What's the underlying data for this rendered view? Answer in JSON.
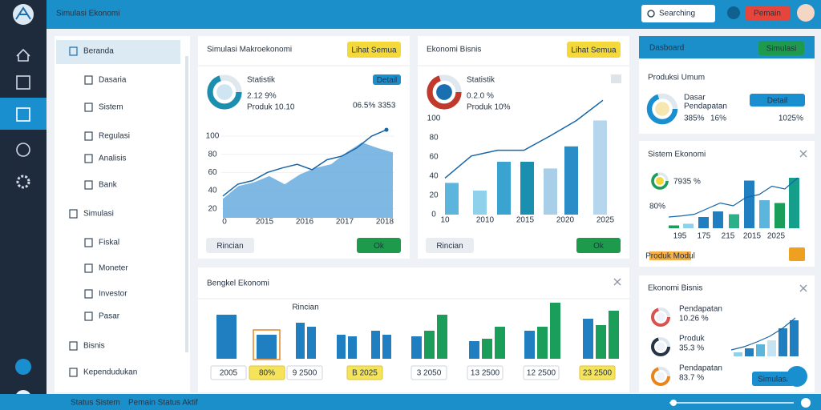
{
  "app": {
    "title": "Simulasi Ekonomi",
    "search": "Searching",
    "button": "Pemain"
  },
  "sidebar": [
    "Beranda",
    "Dasaria",
    "Sistem",
    "Regulasi",
    "Analisis",
    "Bank",
    "Simulasi",
    "Fiskal",
    "Moneter",
    "Investor",
    "Pasar",
    "Bisnis",
    "Kependudukan"
  ],
  "macro": {
    "title": "Simulasi Makroekonomi",
    "button": "Lihat Semua",
    "stat_label": "Statistik",
    "stat_value": "2.12 9%",
    "stat_sub": "Produk 10.10",
    "pill": "Detail",
    "stat_right": "06.5% 3353",
    "chart": {
      "ylim": [
        10,
        100
      ],
      "yticks": [
        20,
        40,
        60,
        80,
        100
      ],
      "xlabels": [
        "0",
        "2015",
        "2016",
        "2017",
        "2018"
      ],
      "area": [
        31,
        45,
        49,
        56,
        47,
        58,
        65,
        69,
        82,
        93,
        87,
        82
      ],
      "line": [
        34,
        47,
        51,
        60,
        65,
        69,
        63,
        74,
        78,
        87,
        100,
        107
      ]
    },
    "button_left": "Rincian",
    "button_right": "Ok"
  },
  "business": {
    "title": "Ekonomi Bisnis",
    "button": "Lihat Semua",
    "stat_label": "Statistik",
    "stat_value": "0.2.0 %",
    "stat_sub": "Produk 10%",
    "chart": {
      "ylim": [
        0,
        120
      ],
      "yticks": [
        0,
        20,
        40,
        60,
        80,
        100
      ],
      "xlabels": [
        "10",
        "2010",
        "2015",
        "2020",
        "2025"
      ],
      "bars": [
        33,
        25,
        55,
        55,
        48,
        71,
        98
      ],
      "line": [
        38,
        61,
        67,
        67,
        82,
        98,
        119
      ]
    },
    "button_left": "Rincian",
    "button_right": "Ok"
  },
  "workshop": {
    "title": "Bengkel Ekonomi",
    "header": "Rincian",
    "ylim": [
      0,
      70
    ],
    "groups": [
      [
        55
      ],
      [
        30
      ],
      [
        45,
        40
      ],
      [
        30,
        28
      ],
      [
        35,
        30
      ],
      [
        28,
        35,
        55
      ],
      [
        22,
        25,
        40
      ],
      [
        35,
        40,
        70
      ],
      [
        50,
        42,
        60
      ]
    ],
    "labels": [
      "2005",
      "80%",
      "9 2500",
      "B 2025",
      "3 2050",
      "13 2500",
      "12 2500",
      "23 2500"
    ]
  },
  "dashboard": {
    "header": "Dasboard",
    "button": "Simulasi",
    "title": "Produksi Umum",
    "line1": "Dasar",
    "line2": "Pendapatan",
    "stat": "385%",
    "stat2": "16%",
    "pill": "Detail",
    "stat_right": "1025%"
  },
  "system": {
    "title": "Sistem Ekonomi",
    "stat": "7935 %",
    "tick": "80%",
    "ylim": [
      0,
      100
    ],
    "bars": [
      5,
      8,
      20,
      30,
      25,
      85,
      50,
      45,
      90
    ],
    "line": [
      20,
      22,
      25,
      35,
      45,
      40,
      55,
      60,
      75,
      70,
      90
    ],
    "xlabels": [
      "195",
      "175",
      "215",
      "2015",
      "2025"
    ],
    "note": "Produk Modul"
  },
  "business2": {
    "title": "Ekonomi Bisnis",
    "items": [
      {
        "label": "Pendapatan",
        "value": "10.26 %"
      },
      {
        "label": "Produk",
        "value": "35.3 %"
      },
      {
        "label": "Pendapatan",
        "value": "83.7 %"
      }
    ],
    "ylim": [
      0,
      50
    ],
    "bars": [
      5,
      10,
      15,
      20,
      35,
      45
    ],
    "line": [
      8,
      12,
      18,
      25,
      35,
      48
    ],
    "button": "Simulasi"
  },
  "footer": [
    "Status Sistem",
    "Pemain Status Aktif"
  ]
}
